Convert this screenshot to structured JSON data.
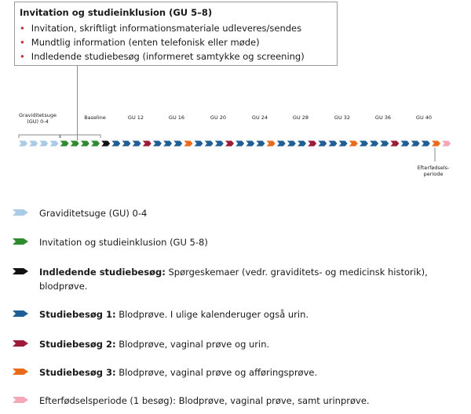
{
  "callout": {
    "title": "Invitation og studieinklusion (GU 5–8)",
    "bullets": [
      "Invitation, skriftligt informationsmateriale udleveres/sendes",
      "Mundtlig information (enten telefonisk eller møde)",
      "Indledende studiebesøg (informeret samtykke og screening)"
    ]
  },
  "timeline": {
    "labels": {
      "graviditetsuge": [
        "Graviditetsuge",
        "(GU) 0-4"
      ],
      "baseline": "Baseline",
      "gu12": "GU 12",
      "gu16": "GU 16",
      "gu20": "GU 20",
      "gu24": "GU 24",
      "gu28": "GU 28",
      "gu32": "GU 32",
      "gu36": "GU 36",
      "gu40": "GU 40",
      "postpartum": [
        "Efterfødsels-",
        "periode"
      ]
    }
  },
  "colors": {
    "lightblue": "#a9cbe8",
    "green": "#2e8b2e",
    "black": "#111111",
    "blue": "#1f5f96",
    "crimson": "#9c1b3a",
    "orange": "#ea6a1c",
    "pink": "#f4a7b7"
  },
  "legend": [
    {
      "color": "lightblue",
      "bold": "",
      "text": "Graviditetsuge (GU) 0-4"
    },
    {
      "color": "green",
      "bold": "",
      "text": "Invitation og studieinklusion (GU 5-8)"
    },
    {
      "color": "black",
      "bold": "Indledende studiebesøg:",
      "text": " Spørgeskemaer (vedr. graviditets- og medicinsk historik),",
      "text2": "blodprøve."
    },
    {
      "color": "blue",
      "bold": "Studiebesøg 1:",
      "text": " Blodprøve. I ulige kalenderuger også urin."
    },
    {
      "color": "crimson",
      "bold": "Studiebesøg 2:",
      "text": " Blodprøve, vaginal prøve og urin."
    },
    {
      "color": "orange",
      "bold": "Studiebesøg 3:",
      "text": " Blodprøve, vaginal prøve og afføringsprøve."
    },
    {
      "color": "pink",
      "bold": "",
      "text": "Efterfødselsperiode (1 besøg): Blodprøve, vaginal prøve, samt urinprøve."
    }
  ]
}
